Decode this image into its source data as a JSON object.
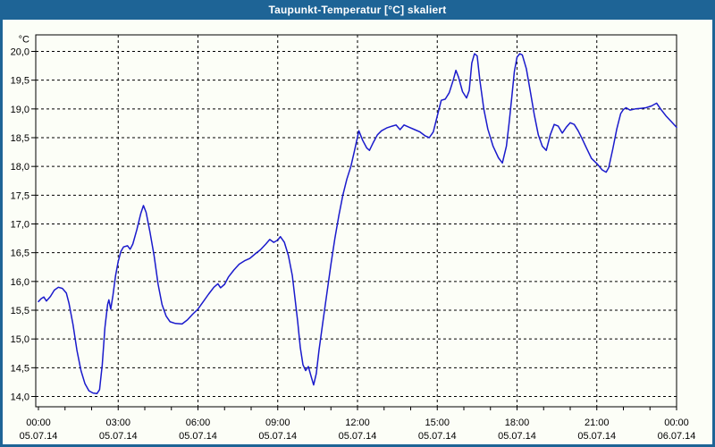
{
  "window": {
    "title": "Taupunkt-Temperatur [°C] skaliert"
  },
  "colors": {
    "frame": "#1E6496",
    "titlebar": "#1E6496",
    "title_text": "#FFFFFF",
    "plot_background": "#FCFEF7",
    "series_line": "#1A1ACC",
    "grid": "#000000",
    "axis": "#000000",
    "tick_text": "#000000"
  },
  "chart_data": {
    "type": "line",
    "title": "Taupunkt-Temperatur [°C] skaliert",
    "xlabel": "",
    "ylabel": "°C",
    "grid": "dashed",
    "legend": "none",
    "xlim_hours": [
      0,
      24
    ],
    "ylim": [
      14.0,
      20.0
    ],
    "y_tick_values": [
      20.0,
      19.5,
      19.0,
      18.5,
      18.0,
      17.5,
      17.0,
      16.5,
      16.0,
      15.5,
      15.0,
      14.5,
      14.0
    ],
    "y_tick_labels": [
      "20,0",
      "19,5",
      "19,0",
      "18,5",
      "18,0",
      "17,5",
      "17,0",
      "16,5",
      "16,0",
      "15,5",
      "15,0",
      "14,5",
      "14,0"
    ],
    "x_major_ticks": [
      {
        "hour": 0,
        "time": "00:00",
        "date": "05.07.14"
      },
      {
        "hour": 3,
        "time": "03:00",
        "date": "05.07.14"
      },
      {
        "hour": 6,
        "time": "06:00",
        "date": "05.07.14"
      },
      {
        "hour": 9,
        "time": "09:00",
        "date": "05.07.14"
      },
      {
        "hour": 12,
        "time": "12:00",
        "date": "05.07.14"
      },
      {
        "hour": 15,
        "time": "15:00",
        "date": "05.07.14"
      },
      {
        "hour": 18,
        "time": "18:00",
        "date": "05.07.14"
      },
      {
        "hour": 21,
        "time": "21:00",
        "date": "05.07.14"
      },
      {
        "hour": 24,
        "time": "00:00",
        "date": "06.07.14"
      }
    ],
    "x_minor_tick_every_hours": 1,
    "series": [
      {
        "name": "Taupunkt-Temperatur",
        "unit": "°C",
        "color": "#1A1ACC",
        "points": [
          [
            0.0,
            15.65
          ],
          [
            0.1,
            15.7
          ],
          [
            0.2,
            15.73
          ],
          [
            0.3,
            15.66
          ],
          [
            0.45,
            15.74
          ],
          [
            0.6,
            15.85
          ],
          [
            0.75,
            15.9
          ],
          [
            0.9,
            15.88
          ],
          [
            1.05,
            15.8
          ],
          [
            1.15,
            15.62
          ],
          [
            1.3,
            15.25
          ],
          [
            1.45,
            14.8
          ],
          [
            1.6,
            14.45
          ],
          [
            1.75,
            14.22
          ],
          [
            1.9,
            14.1
          ],
          [
            2.05,
            14.06
          ],
          [
            2.2,
            14.05
          ],
          [
            2.3,
            14.12
          ],
          [
            2.4,
            14.55
          ],
          [
            2.5,
            15.2
          ],
          [
            2.6,
            15.6
          ],
          [
            2.65,
            15.68
          ],
          [
            2.72,
            15.52
          ],
          [
            2.8,
            15.75
          ],
          [
            2.9,
            16.1
          ],
          [
            3.0,
            16.35
          ],
          [
            3.1,
            16.52
          ],
          [
            3.2,
            16.6
          ],
          [
            3.35,
            16.62
          ],
          [
            3.45,
            16.56
          ],
          [
            3.55,
            16.65
          ],
          [
            3.7,
            16.9
          ],
          [
            3.85,
            17.18
          ],
          [
            3.95,
            17.32
          ],
          [
            4.05,
            17.2
          ],
          [
            4.2,
            16.85
          ],
          [
            4.35,
            16.45
          ],
          [
            4.5,
            15.95
          ],
          [
            4.65,
            15.6
          ],
          [
            4.8,
            15.4
          ],
          [
            4.95,
            15.3
          ],
          [
            5.15,
            15.27
          ],
          [
            5.4,
            15.26
          ],
          [
            5.6,
            15.33
          ],
          [
            5.8,
            15.43
          ],
          [
            6.0,
            15.52
          ],
          [
            6.2,
            15.65
          ],
          [
            6.4,
            15.78
          ],
          [
            6.6,
            15.9
          ],
          [
            6.75,
            15.96
          ],
          [
            6.85,
            15.89
          ],
          [
            7.0,
            15.95
          ],
          [
            7.15,
            16.08
          ],
          [
            7.35,
            16.2
          ],
          [
            7.55,
            16.3
          ],
          [
            7.75,
            16.36
          ],
          [
            7.95,
            16.4
          ],
          [
            8.15,
            16.48
          ],
          [
            8.35,
            16.55
          ],
          [
            8.55,
            16.65
          ],
          [
            8.7,
            16.73
          ],
          [
            8.85,
            16.68
          ],
          [
            9.0,
            16.72
          ],
          [
            9.1,
            16.78
          ],
          [
            9.25,
            16.68
          ],
          [
            9.4,
            16.45
          ],
          [
            9.55,
            16.1
          ],
          [
            9.65,
            15.7
          ],
          [
            9.75,
            15.3
          ],
          [
            9.85,
            14.85
          ],
          [
            9.95,
            14.55
          ],
          [
            10.05,
            14.45
          ],
          [
            10.15,
            14.52
          ],
          [
            10.25,
            14.36
          ],
          [
            10.35,
            14.2
          ],
          [
            10.45,
            14.4
          ],
          [
            10.55,
            14.8
          ],
          [
            10.7,
            15.3
          ],
          [
            10.85,
            15.8
          ],
          [
            11.0,
            16.3
          ],
          [
            11.15,
            16.75
          ],
          [
            11.3,
            17.15
          ],
          [
            11.45,
            17.5
          ],
          [
            11.6,
            17.78
          ],
          [
            11.75,
            18.0
          ],
          [
            11.9,
            18.3
          ],
          [
            12.05,
            18.62
          ],
          [
            12.2,
            18.45
          ],
          [
            12.35,
            18.32
          ],
          [
            12.45,
            18.28
          ],
          [
            12.6,
            18.42
          ],
          [
            12.75,
            18.55
          ],
          [
            12.9,
            18.62
          ],
          [
            13.1,
            18.67
          ],
          [
            13.3,
            18.7
          ],
          [
            13.45,
            18.72
          ],
          [
            13.6,
            18.64
          ],
          [
            13.75,
            18.72
          ],
          [
            13.95,
            18.68
          ],
          [
            14.15,
            18.64
          ],
          [
            14.35,
            18.6
          ],
          [
            14.55,
            18.53
          ],
          [
            14.7,
            18.5
          ],
          [
            14.85,
            18.6
          ],
          [
            15.0,
            18.88
          ],
          [
            15.15,
            19.15
          ],
          [
            15.3,
            19.17
          ],
          [
            15.45,
            19.28
          ],
          [
            15.6,
            19.5
          ],
          [
            15.7,
            19.67
          ],
          [
            15.8,
            19.55
          ],
          [
            15.95,
            19.3
          ],
          [
            16.1,
            19.19
          ],
          [
            16.2,
            19.32
          ],
          [
            16.3,
            19.8
          ],
          [
            16.4,
            19.96
          ],
          [
            16.5,
            19.92
          ],
          [
            16.6,
            19.5
          ],
          [
            16.75,
            19.0
          ],
          [
            16.9,
            18.65
          ],
          [
            17.1,
            18.35
          ],
          [
            17.3,
            18.15
          ],
          [
            17.45,
            18.06
          ],
          [
            17.6,
            18.35
          ],
          [
            17.7,
            18.75
          ],
          [
            17.8,
            19.2
          ],
          [
            17.9,
            19.65
          ],
          [
            18.0,
            19.9
          ],
          [
            18.1,
            19.96
          ],
          [
            18.2,
            19.94
          ],
          [
            18.35,
            19.7
          ],
          [
            18.5,
            19.3
          ],
          [
            18.65,
            18.9
          ],
          [
            18.8,
            18.55
          ],
          [
            18.95,
            18.35
          ],
          [
            19.1,
            18.28
          ],
          [
            19.25,
            18.55
          ],
          [
            19.4,
            18.73
          ],
          [
            19.55,
            18.7
          ],
          [
            19.7,
            18.58
          ],
          [
            19.85,
            18.68
          ],
          [
            20.0,
            18.76
          ],
          [
            20.15,
            18.73
          ],
          [
            20.3,
            18.62
          ],
          [
            20.45,
            18.48
          ],
          [
            20.6,
            18.33
          ],
          [
            20.8,
            18.14
          ],
          [
            21.0,
            18.05
          ],
          [
            21.2,
            17.94
          ],
          [
            21.35,
            17.9
          ],
          [
            21.45,
            17.98
          ],
          [
            21.6,
            18.3
          ],
          [
            21.75,
            18.65
          ],
          [
            21.9,
            18.92
          ],
          [
            22.0,
            18.99
          ],
          [
            22.1,
            19.02
          ],
          [
            22.25,
            18.98
          ],
          [
            22.45,
            19.0
          ],
          [
            22.65,
            19.01
          ],
          [
            22.85,
            19.02
          ],
          [
            23.05,
            19.05
          ],
          [
            23.25,
            19.1
          ],
          [
            23.4,
            19.0
          ],
          [
            23.6,
            18.88
          ],
          [
            23.8,
            18.78
          ],
          [
            24.0,
            18.68
          ]
        ]
      }
    ]
  }
}
